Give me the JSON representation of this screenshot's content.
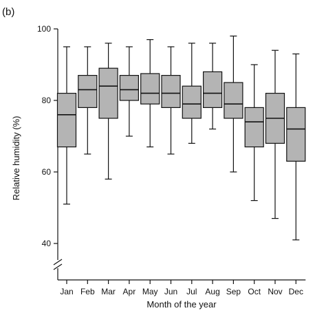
{
  "panel_label": "(b)",
  "chart_data": {
    "type": "boxplot",
    "xlabel": "Month of the year",
    "ylabel": "Relative humidity (%)",
    "ylim": [
      40,
      100
    ],
    "yticks": [
      40,
      60,
      80,
      100
    ],
    "axis_break": "y-axis below 40",
    "grid": false,
    "box_color": "#b4b4b4",
    "categories": [
      "Jan",
      "Feb",
      "Mar",
      "Apr",
      "May",
      "Jun",
      "Jul",
      "Aug",
      "Sep",
      "Oct",
      "Nov",
      "Dec"
    ],
    "boxes": [
      {
        "min": 51,
        "q1": 67,
        "median": 76,
        "q3": 82,
        "max": 95
      },
      {
        "min": 65,
        "q1": 78,
        "median": 83,
        "q3": 87,
        "max": 95
      },
      {
        "min": 58,
        "q1": 75,
        "median": 84,
        "q3": 89,
        "max": 96
      },
      {
        "min": 70,
        "q1": 80,
        "median": 83,
        "q3": 87,
        "max": 95
      },
      {
        "min": 67,
        "q1": 79,
        "median": 82,
        "q3": 87.5,
        "max": 97
      },
      {
        "min": 65,
        "q1": 78,
        "median": 82,
        "q3": 87,
        "max": 95
      },
      {
        "min": 68,
        "q1": 75,
        "median": 79,
        "q3": 84,
        "max": 96
      },
      {
        "min": 72,
        "q1": 78,
        "median": 82,
        "q3": 88,
        "max": 96
      },
      {
        "min": 60,
        "q1": 75,
        "median": 79,
        "q3": 85,
        "max": 98
      },
      {
        "min": 52,
        "q1": 67,
        "median": 74,
        "q3": 78,
        "max": 90
      },
      {
        "min": 47,
        "q1": 68,
        "median": 75,
        "q3": 82,
        "max": 94
      },
      {
        "min": 41,
        "q1": 63,
        "median": 72,
        "q3": 78,
        "max": 93
      }
    ]
  }
}
